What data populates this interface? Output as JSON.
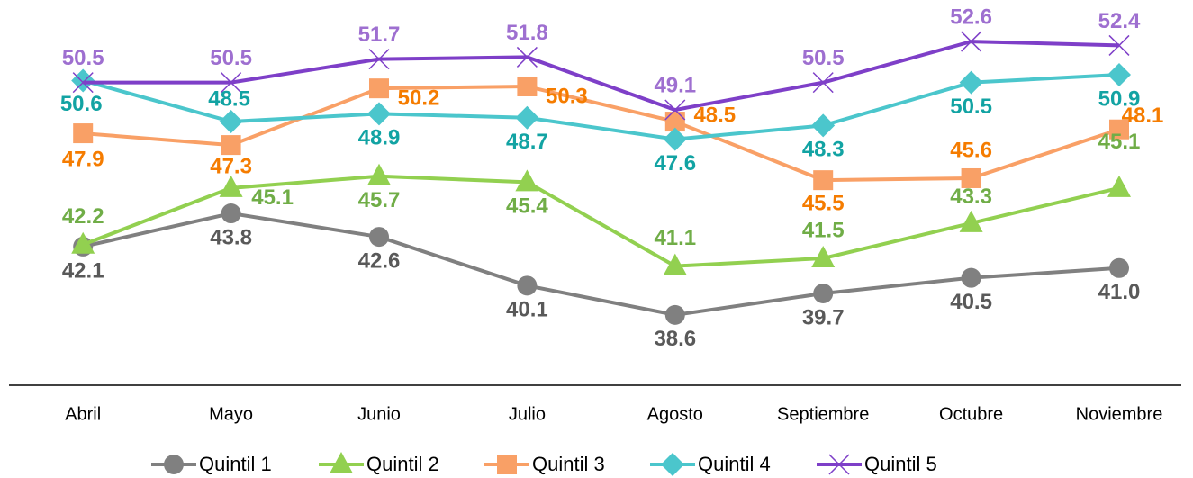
{
  "chart_data": {
    "type": "line",
    "categories": [
      "Abril",
      "Mayo",
      "Junio",
      "Julio",
      "Agosto",
      "Septiembre",
      "Octubre",
      "Noviembre"
    ],
    "ylim": [
      35,
      55
    ],
    "series": [
      {
        "name": "Quintil 1",
        "color": "#808080",
        "label_color": "#595959",
        "marker": "circle",
        "values": [
          42.1,
          43.8,
          42.6,
          40.1,
          38.6,
          39.7,
          40.5,
          41.0
        ],
        "value_labels": [
          "42.1",
          "43.8",
          "42.6",
          "40.1",
          "38.6",
          "39.7",
          "40.5",
          "41.0"
        ]
      },
      {
        "name": "Quintil 2",
        "color": "#92d050",
        "label_color": "#70ad47",
        "marker": "triangle",
        "values": [
          42.2,
          45.1,
          45.7,
          45.4,
          41.1,
          41.5,
          43.3,
          45.1
        ]
      },
      {
        "name": "Quintil 3",
        "color": "#f9a066",
        "label_color": "#f57c00",
        "marker": "square",
        "values": [
          47.9,
          47.3,
          50.2,
          50.3,
          48.5,
          45.5,
          45.6,
          48.1
        ]
      },
      {
        "name": "Quintil 4",
        "color": "#4bc6cc",
        "label_color": "#12a3a3",
        "marker": "diamond",
        "values": [
          50.6,
          48.5,
          48.9,
          48.7,
          47.6,
          48.3,
          50.5,
          50.9
        ]
      },
      {
        "name": "Quintil 5",
        "color": "#7e3fc8",
        "label_color": "#9e6fd0",
        "marker": "x",
        "values": [
          50.5,
          50.5,
          51.7,
          51.8,
          49.1,
          50.5,
          52.6,
          52.4
        ]
      }
    ]
  }
}
